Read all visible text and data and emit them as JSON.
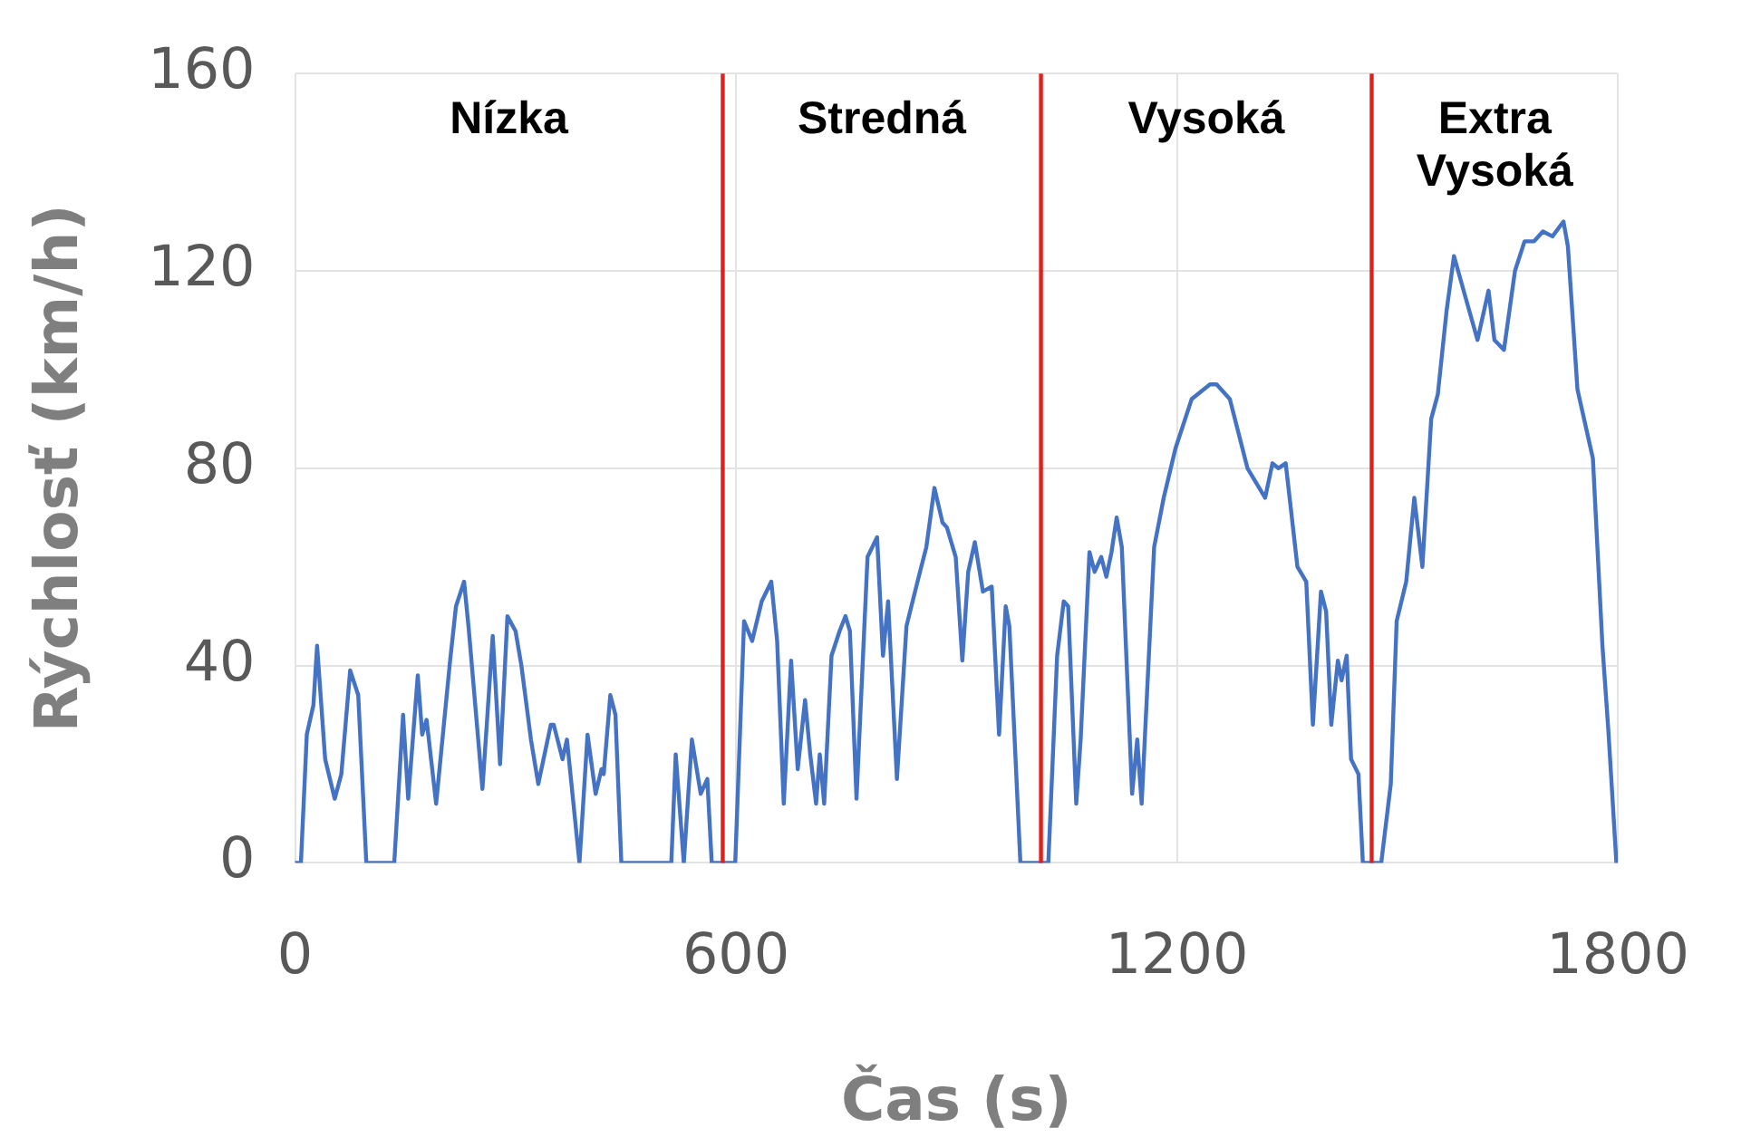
{
  "chart_data": {
    "type": "line",
    "xlabel": "Čas (s)",
    "ylabel": "Rýchlosť (km/h)",
    "xlim": [
      0,
      1800
    ],
    "xticks": [
      0,
      600,
      1200,
      1800
    ],
    "ylim": [
      0,
      160
    ],
    "yticks": [
      0,
      40,
      80,
      120,
      160
    ],
    "grid": true,
    "marker": "none",
    "line_style": "solid",
    "series": [
      {
        "color": "#4472c4",
        "x": [
          0,
          8,
          16,
          25,
          30,
          41,
          54,
          63,
          75,
          86,
          97,
          135,
          147,
          154,
          167,
          173,
          179,
          192,
          211,
          219,
          230,
          236,
          255,
          269,
          279,
          289,
          300,
          308,
          321,
          331,
          348,
          352,
          364,
          370,
          387,
          398,
          409,
          417,
          420,
          429,
          436,
          444,
          512,
          518,
          529,
          540,
          552,
          561,
          567,
          599,
          611,
          622,
          635,
          648,
          656,
          665,
          675,
          684,
          694,
          701,
          709,
          714,
          720,
          730,
          741,
          749,
          755,
          764,
          779,
          792,
          800,
          807,
          819,
          832,
          847,
          859,
          870,
          881,
          887,
          899,
          908,
          916,
          925,
          936,
          948,
          958,
          967,
          972,
          987,
          1008,
          1025,
          1037,
          1046,
          1052,
          1063,
          1069,
          1081,
          1088,
          1097,
          1104,
          1111,
          1118,
          1125,
          1139,
          1146,
          1152,
          1169,
          1182,
          1198,
          1220,
          1245,
          1254,
          1272,
          1296,
          1320,
          1330,
          1338,
          1348,
          1364,
          1376,
          1385,
          1396,
          1403,
          1410,
          1419,
          1424,
          1431,
          1437,
          1447,
          1453,
          1478,
          1491,
          1499,
          1512,
          1523,
          1534,
          1546,
          1555,
          1567,
          1577,
          1592,
          1609,
          1624,
          1632,
          1645,
          1660,
          1673,
          1686,
          1698,
          1711,
          1726,
          1732,
          1745,
          1766,
          1779,
          1787,
          1798
        ],
        "values": [
          0,
          0,
          26,
          32,
          44,
          21,
          13,
          18,
          39,
          34,
          0,
          0,
          30,
          13,
          38,
          26,
          29,
          12,
          41,
          52,
          57,
          48,
          15,
          46,
          20,
          50,
          47,
          40,
          25,
          16,
          28,
          28,
          21,
          25,
          0,
          26,
          14,
          19,
          18,
          34,
          30,
          0,
          0,
          22,
          0,
          25,
          14,
          17,
          0,
          0,
          49,
          45,
          53,
          57,
          45,
          12,
          41,
          19,
          33,
          22,
          12,
          22,
          12,
          42,
          47,
          50,
          47,
          13,
          62,
          66,
          42,
          53,
          17,
          48,
          57,
          64,
          76,
          69,
          68,
          62,
          41,
          59,
          65,
          55,
          56,
          26,
          52,
          48,
          0,
          0,
          0,
          42,
          53,
          52,
          12,
          25,
          63,
          59,
          62,
          58,
          63,
          70,
          64,
          14,
          25,
          12,
          64,
          74,
          84,
          94,
          97,
          97,
          94,
          80,
          74,
          81,
          80,
          81,
          60,
          57,
          28,
          55,
          51,
          28,
          41,
          37,
          42,
          21,
          18,
          0,
          0,
          16,
          49,
          57,
          74,
          60,
          90,
          95,
          112,
          123,
          115,
          106,
          116,
          106,
          104,
          120,
          126,
          126,
          128,
          127,
          130,
          125,
          96,
          82,
          44,
          27,
          0
        ]
      }
    ],
    "ref_lines": [
      {
        "axis": "x",
        "value": 582,
        "color": "#e0201c"
      },
      {
        "axis": "x",
        "value": 1015,
        "color": "#e0201c"
      },
      {
        "axis": "x",
        "value": 1465,
        "color": "#e0201c"
      }
    ],
    "annotations": [
      "Nízka",
      "Stredná",
      "Vysoká",
      "Extra Vysoká"
    ]
  }
}
